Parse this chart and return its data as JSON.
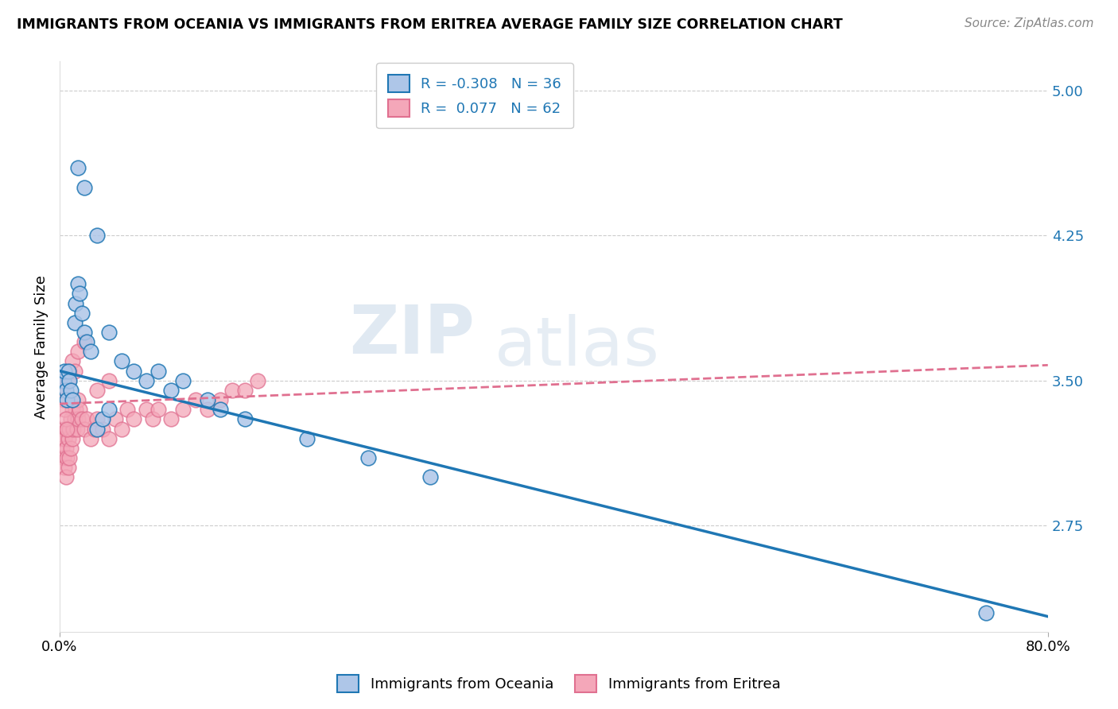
{
  "title": "IMMIGRANTS FROM OCEANIA VS IMMIGRANTS FROM ERITREA AVERAGE FAMILY SIZE CORRELATION CHART",
  "source": "Source: ZipAtlas.com",
  "ylabel": "Average Family Size",
  "xlabel": "",
  "xlim": [
    0.0,
    0.8
  ],
  "ylim": [
    2.2,
    5.15
  ],
  "yticks": [
    2.75,
    3.5,
    4.25,
    5.0
  ],
  "xticks": [
    0.0,
    0.8
  ],
  "xticklabels": [
    "0.0%",
    "80.0%"
  ],
  "yticklabels_right": [
    "2.75",
    "3.50",
    "4.25",
    "5.00"
  ],
  "color_oceania": "#aec6e8",
  "color_eritrea": "#f4a7b9",
  "line_color_oceania": "#1f77b4",
  "line_color_eritrea": "#e07090",
  "watermark_zip": "ZIP",
  "watermark_atlas": "atlas",
  "oceania_x": [
    0.003,
    0.004,
    0.005,
    0.006,
    0.007,
    0.008,
    0.009,
    0.01,
    0.012,
    0.013,
    0.015,
    0.016,
    0.018,
    0.02,
    0.022,
    0.025,
    0.03,
    0.04,
    0.05,
    0.06,
    0.07,
    0.08,
    0.09,
    0.1,
    0.12,
    0.13,
    0.15,
    0.2,
    0.25,
    0.3,
    0.015,
    0.02,
    0.03,
    0.035,
    0.04,
    0.75
  ],
  "oceania_y": [
    3.5,
    3.55,
    3.45,
    3.4,
    3.55,
    3.5,
    3.45,
    3.4,
    3.8,
    3.9,
    4.0,
    3.95,
    3.85,
    3.75,
    3.7,
    3.65,
    4.25,
    3.75,
    3.6,
    3.55,
    3.5,
    3.55,
    3.45,
    3.5,
    3.4,
    3.35,
    3.3,
    3.2,
    3.1,
    3.0,
    4.6,
    4.5,
    3.25,
    3.3,
    3.35,
    2.3
  ],
  "eritrea_x": [
    0.001,
    0.002,
    0.003,
    0.003,
    0.004,
    0.004,
    0.005,
    0.005,
    0.006,
    0.006,
    0.007,
    0.007,
    0.008,
    0.008,
    0.009,
    0.009,
    0.01,
    0.01,
    0.011,
    0.012,
    0.013,
    0.014,
    0.015,
    0.015,
    0.016,
    0.018,
    0.02,
    0.022,
    0.025,
    0.028,
    0.03,
    0.035,
    0.04,
    0.045,
    0.05,
    0.055,
    0.06,
    0.07,
    0.075,
    0.08,
    0.09,
    0.1,
    0.11,
    0.12,
    0.13,
    0.14,
    0.15,
    0.16,
    0.001,
    0.002,
    0.003,
    0.004,
    0.005,
    0.006,
    0.007,
    0.008,
    0.01,
    0.012,
    0.015,
    0.02,
    0.03,
    0.04
  ],
  "eritrea_y": [
    3.2,
    3.15,
    3.1,
    3.25,
    3.05,
    3.2,
    3.0,
    3.15,
    3.1,
    3.25,
    3.05,
    3.2,
    3.1,
    3.25,
    3.15,
    3.3,
    3.2,
    3.35,
    3.25,
    3.3,
    3.35,
    3.25,
    3.3,
    3.4,
    3.35,
    3.3,
    3.25,
    3.3,
    3.2,
    3.25,
    3.3,
    3.25,
    3.2,
    3.3,
    3.25,
    3.35,
    3.3,
    3.35,
    3.3,
    3.35,
    3.3,
    3.35,
    3.4,
    3.35,
    3.4,
    3.45,
    3.45,
    3.5,
    3.5,
    3.45,
    3.4,
    3.35,
    3.3,
    3.25,
    3.5,
    3.55,
    3.6,
    3.55,
    3.65,
    3.7,
    3.45,
    3.5
  ],
  "blue_line_x0": 0.0,
  "blue_line_y0": 3.55,
  "blue_line_x1": 0.8,
  "blue_line_y1": 2.28,
  "pink_line_x0": 0.0,
  "pink_line_y0": 3.38,
  "pink_line_x1": 0.8,
  "pink_line_y1": 3.58
}
